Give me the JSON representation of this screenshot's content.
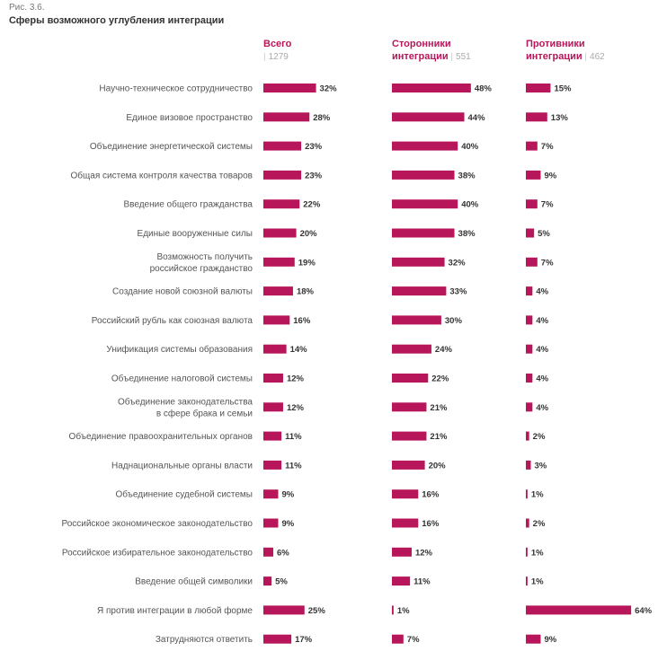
{
  "figure": {
    "number": "Рис. 3.6.",
    "title": "Сферы возможного углубления интеграции"
  },
  "colors": {
    "bar": "#b7165a",
    "header": "#b7165a",
    "label": "#555555",
    "value": "#333333"
  },
  "columns": [
    {
      "title_line1": "Всего",
      "title_line2": "",
      "n": "1279"
    },
    {
      "title_line1": "Сторонники",
      "title_line2": "интеграции",
      "n": "551"
    },
    {
      "title_line1": "Противники",
      "title_line2": "интеграции",
      "n": "462"
    }
  ],
  "chart_data": {
    "type": "bar",
    "orientation": "horizontal",
    "value_suffix": "%",
    "categories": [
      [
        "Научно-техническое сотрудничество"
      ],
      [
        "Единое визовое пространство"
      ],
      [
        "Объединение энергетической системы"
      ],
      [
        "Общая система контроля качества товаров"
      ],
      [
        "Введение общего гражданства"
      ],
      [
        "Единые вооруженные силы"
      ],
      [
        "Возможность получить",
        "российское гражданство"
      ],
      [
        "Создание новой союзной валюты"
      ],
      [
        "Российский рубль как союзная валюта"
      ],
      [
        "Унификация системы образования"
      ],
      [
        "Объединение налоговой системы"
      ],
      [
        "Объединение законодательства",
        "в сфере брака и семьи"
      ],
      [
        "Объединение правоохранительных органов"
      ],
      [
        "Наднациональные органы власти"
      ],
      [
        "Объединение судебной системы"
      ],
      [
        "Российское экономическое законодательство"
      ],
      [
        "Российское избирательное законодательство"
      ],
      [
        "Введение общей символики"
      ],
      [
        "Я против интеграции в любой форме"
      ],
      [
        "Затрудняются ответить"
      ]
    ],
    "series": [
      {
        "name": "Всего",
        "values": [
          32,
          28,
          23,
          23,
          22,
          20,
          19,
          18,
          16,
          14,
          12,
          12,
          11,
          11,
          9,
          9,
          6,
          5,
          25,
          17
        ]
      },
      {
        "name": "Сторонники интеграции",
        "values": [
          48,
          44,
          40,
          38,
          40,
          38,
          32,
          33,
          30,
          24,
          22,
          21,
          21,
          20,
          16,
          16,
          12,
          11,
          1,
          7
        ]
      },
      {
        "name": "Противники интеграции",
        "values": [
          15,
          13,
          7,
          9,
          7,
          5,
          7,
          4,
          4,
          4,
          4,
          4,
          2,
          3,
          1,
          2,
          1,
          1,
          64,
          9
        ]
      }
    ]
  }
}
